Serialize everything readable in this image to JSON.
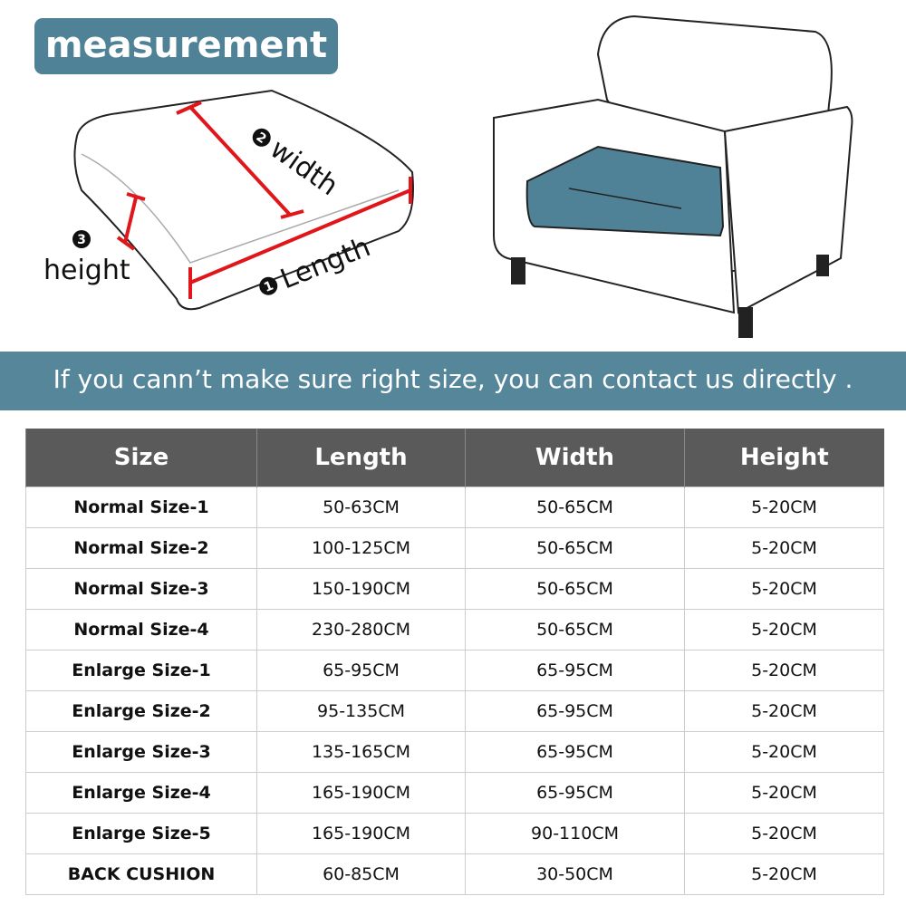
{
  "header": {
    "badge": "measurement"
  },
  "diagram": {
    "labels": [
      {
        "number": "1",
        "text": "Length"
      },
      {
        "number": "2",
        "text": "width"
      },
      {
        "number": "3",
        "text": "height"
      }
    ]
  },
  "banner": "If you cann’t make sure right size,  you can contact us directly .",
  "table": {
    "columns": [
      "Size",
      "Length",
      "Width",
      "Height"
    ],
    "rows": [
      [
        "Normal Size-1",
        "50-63CM",
        "50-65CM",
        "5-20CM"
      ],
      [
        "Normal Size-2",
        "100-125CM",
        "50-65CM",
        "5-20CM"
      ],
      [
        "Normal Size-3",
        "150-190CM",
        "50-65CM",
        "5-20CM"
      ],
      [
        "Normal Size-4",
        "230-280CM",
        "50-65CM",
        "5-20CM"
      ],
      [
        "Enlarge Size-1",
        "65-95CM",
        "65-95CM",
        "5-20CM"
      ],
      [
        "Enlarge Size-2",
        "95-135CM",
        "65-95CM",
        "5-20CM"
      ],
      [
        "Enlarge Size-3",
        "135-165CM",
        "65-95CM",
        "5-20CM"
      ],
      [
        "Enlarge Size-4",
        "165-190CM",
        "65-95CM",
        "5-20CM"
      ],
      [
        "Enlarge Size-5",
        "165-190CM",
        "90-110CM",
        "5-20CM"
      ],
      [
        "BACK CUSHION",
        "60-85CM",
        "30-50CM",
        "5-20CM"
      ]
    ]
  }
}
